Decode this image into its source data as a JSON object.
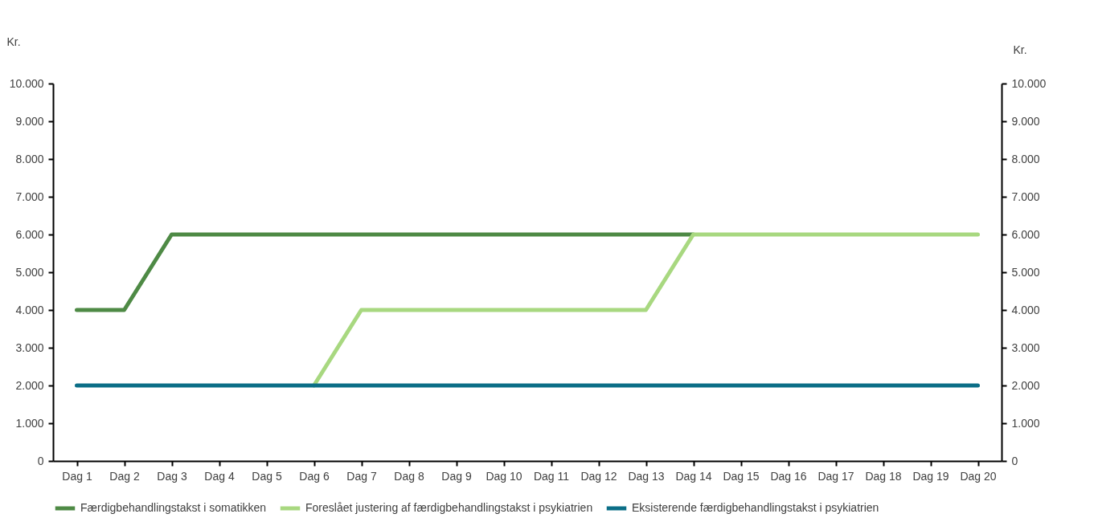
{
  "chart_data": {
    "type": "line",
    "ylabel": "Kr.",
    "y2label": "Kr.",
    "categories": [
      "Dag 1",
      "Dag 2",
      "Dag 3",
      "Dag 4",
      "Dag 5",
      "Dag 6",
      "Dag 7",
      "Dag 8",
      "Dag 9",
      "Dag 10",
      "Dag 11",
      "Dag 12",
      "Dag 13",
      "Dag 14",
      "Dag 15",
      "Dag 16",
      "Dag 17",
      "Dag 18",
      "Dag 19",
      "Dag 20"
    ],
    "series": [
      {
        "name": "Færdigbehandlingstakst i somatikken",
        "color": "#4e8a45",
        "values": [
          4000,
          4000,
          6000,
          6000,
          6000,
          6000,
          6000,
          6000,
          6000,
          6000,
          6000,
          6000,
          6000,
          6000,
          null,
          null,
          null,
          null,
          null,
          null
        ]
      },
      {
        "name": "Foreslået justering af færdigbehandlingstakst i psykiatrien",
        "color": "#a8d880",
        "values": [
          null,
          null,
          null,
          null,
          null,
          2000,
          4000,
          4000,
          4000,
          4000,
          4000,
          4000,
          4000,
          6000,
          6000,
          6000,
          6000,
          6000,
          6000,
          6000
        ]
      },
      {
        "name": "Eksisterende færdigbehandlingstakst i psykiatrien",
        "color": "#0b6e87",
        "values": [
          2000,
          2000,
          2000,
          2000,
          2000,
          2000,
          2000,
          2000,
          2000,
          2000,
          2000,
          2000,
          2000,
          2000,
          2000,
          2000,
          2000,
          2000,
          2000,
          2000
        ]
      }
    ],
    "ylim": [
      0,
      10000
    ],
    "yticks": [
      {
        "value": 0,
        "label": "0"
      },
      {
        "value": 1000,
        "label": "1.000"
      },
      {
        "value": 2000,
        "label": "2.000"
      },
      {
        "value": 3000,
        "label": "3.000"
      },
      {
        "value": 4000,
        "label": "4.000"
      },
      {
        "value": 5000,
        "label": "5.000"
      },
      {
        "value": 6000,
        "label": "6.000"
      },
      {
        "value": 7000,
        "label": "7.000"
      },
      {
        "value": 8000,
        "label": "8.000"
      },
      {
        "value": 9000,
        "label": "9.000"
      },
      {
        "value": 10000,
        "label": "10.000"
      }
    ],
    "y2lim": [
      0,
      10000
    ],
    "y2ticks": [
      {
        "value": 0,
        "label": "0"
      },
      {
        "value": 1000,
        "label": "1.000"
      },
      {
        "value": 2000,
        "label": "2.000"
      },
      {
        "value": 3000,
        "label": "3.000"
      },
      {
        "value": 4000,
        "label": "4.000"
      },
      {
        "value": 5000,
        "label": "5.000"
      },
      {
        "value": 6000,
        "label": "6.000"
      },
      {
        "value": 7000,
        "label": "7.000"
      },
      {
        "value": 8000,
        "label": "8.000"
      },
      {
        "value": 9000,
        "label": "9.000"
      },
      {
        "value": 10000,
        "label": "10.000"
      }
    ],
    "grid": false,
    "legend": "bottom",
    "marker": "none",
    "line_style": "solid"
  }
}
